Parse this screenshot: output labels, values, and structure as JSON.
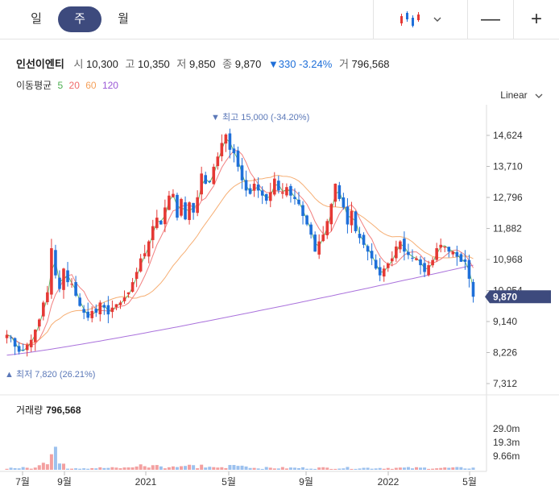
{
  "tabs": [
    {
      "label": "일"
    },
    {
      "label": "주",
      "active": true
    },
    {
      "label": "월"
    }
  ],
  "tools": {
    "minus": "—",
    "plus": "+"
  },
  "stock": {
    "name": "인선이엔티",
    "open_label": "시",
    "open": "10,300",
    "high_label": "고",
    "high": "10,350",
    "low_label": "저",
    "low": "9,850",
    "close_label": "종",
    "close": "9,870",
    "change": "▼330",
    "change_pct": "-3.24%",
    "volume_label": "거",
    "volume": "796,568"
  },
  "ma": {
    "label": "이동평균",
    "periods": [
      {
        "p": "5",
        "color": "#4caf50"
      },
      {
        "p": "20",
        "color": "#f06a6a"
      },
      {
        "p": "60",
        "color": "#f5a05a"
      },
      {
        "p": "120",
        "color": "#9b59d6"
      }
    ]
  },
  "scale": "Linear",
  "volume_panel": {
    "label": "거래량",
    "value": "796,568"
  },
  "colors": {
    "up": "#e53935",
    "down": "#1e6fd9",
    "accent": "#3d4a7d"
  },
  "chart_data": {
    "type": "candlestick",
    "y_ticks": [
      "14,624",
      "13,710",
      "12,796",
      "11,882",
      "10,968",
      "10,054",
      "9,140",
      "8,226",
      "7,312"
    ],
    "y_tick_values": [
      14624,
      13710,
      12796,
      11882,
      10968,
      10054,
      9140,
      8226,
      7312
    ],
    "ylim": [
      7312,
      15000
    ],
    "x_labels": [
      "7월",
      "9월",
      "2021",
      "5월",
      "9월",
      "2022",
      "5월"
    ],
    "current_price": {
      "label": "9,870",
      "value": 9870
    },
    "max_annotation": {
      "label": "최고 15,000 (-34.20%)",
      "value": 15000
    },
    "min_annotation": {
      "label": "최저 7,820 (26.21%)",
      "value": 7820
    },
    "volume_ticks": [
      "29.0m",
      "19.3m",
      "9.66m"
    ],
    "volume_tick_values": [
      29.0,
      19.3,
      9.66
    ],
    "series_close": [
      8750,
      8650,
      8400,
      8250,
      8300,
      8450,
      8600,
      8900,
      9200,
      9700,
      10000,
      11300,
      10500,
      10100,
      10700,
      10300,
      10250,
      9900,
      9600,
      9400,
      9250,
      9450,
      9400,
      9700,
      9550,
      9350,
      9550,
      9650,
      9700,
      9850,
      10000,
      10300,
      10600,
      11000,
      11150,
      11500,
      11950,
      12200,
      12000,
      12500,
      12850,
      12900,
      12200,
      12750,
      12150,
      12650,
      12350,
      12800,
      13500,
      13200,
      13250,
      13700,
      14000,
      14400,
      14650,
      14200,
      14100,
      13700,
      13300,
      13000,
      12900,
      13200,
      13000,
      12850,
      12700,
      12950,
      13350,
      13000,
      12950,
      13100,
      12850,
      12750,
      12600,
      12250,
      12000,
      11700,
      11200,
      11500,
      11700,
      12100,
      12600,
      13200,
      12750,
      12500,
      12000,
      12400,
      11800,
      11600,
      11400,
      11200,
      11000,
      10700,
      10500,
      10700,
      10850,
      11000,
      11350,
      11500,
      11200,
      11100,
      11000,
      11000,
      10800,
      10600,
      10800,
      10950,
      11300,
      11400,
      11350,
      11200,
      11200,
      11050,
      10900,
      10900,
      10400,
      9870
    ],
    "series_ma120_start": 8150,
    "series_ma120_end": 10800
  }
}
